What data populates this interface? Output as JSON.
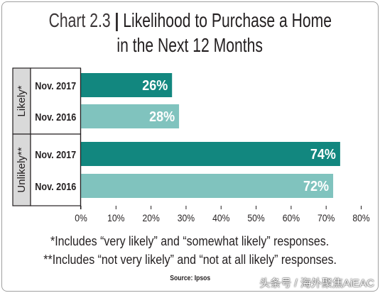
{
  "chart_data": {
    "type": "bar",
    "orientation": "horizontal",
    "title": {
      "label": "Chart 2.3",
      "separator": "|",
      "text": "Likelihood to Purchase a Home",
      "line2": "in the Next 12 Months"
    },
    "groups": [
      {
        "name": "Likely*",
        "categories": [
          "Nov. 2017",
          "Nov. 2016"
        ],
        "values": [
          26,
          28
        ],
        "value_labels": [
          "26%",
          "28%"
        ]
      },
      {
        "name": "Unlikely**",
        "categories": [
          "Nov. 2017",
          "Nov. 2016"
        ],
        "values": [
          74,
          72
        ],
        "value_labels": [
          "74%",
          "72%"
        ]
      }
    ],
    "xlim": [
      0,
      80
    ],
    "x_tick_values": [
      0,
      10,
      20,
      30,
      40,
      50,
      60,
      70,
      80
    ],
    "x_tick_labels": [
      "0%",
      "10%",
      "20%",
      "30%",
      "40%",
      "50%",
      "60%",
      "70%",
      "80%"
    ],
    "grid": false,
    "legend": "none",
    "category_colors": {
      "Nov. 2017": "#12877f",
      "Nov. 2016": "#80c3be"
    },
    "footnotes": [
      "*Includes “very likely” and “somewhat likely” responses.",
      "**Includes “not very likely” and “not at all likely” responses."
    ],
    "source": "Source: Ipsos"
  },
  "colors": {
    "text": "#231f20",
    "group_label_fill": "#d9d9d9",
    "bar_label": "#ffffff",
    "frame": "#a0a0a0"
  },
  "watermark": "头条号 / 海外聚焦AiEAC"
}
